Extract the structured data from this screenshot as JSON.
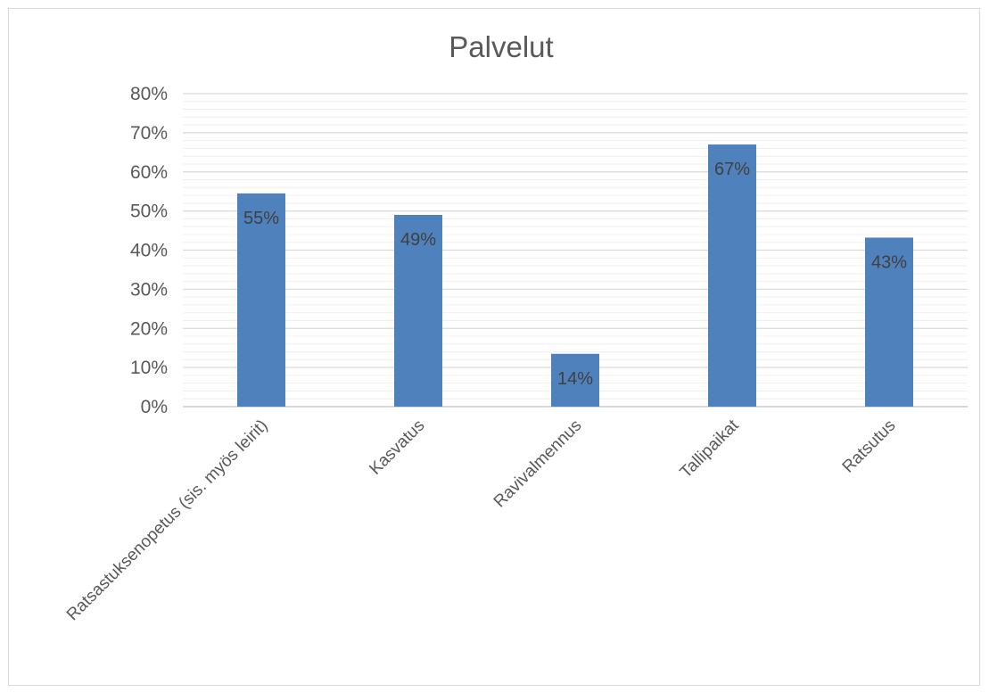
{
  "chart_data": {
    "type": "bar",
    "title": "Palvelut",
    "xlabel": "",
    "ylabel": "",
    "categories": [
      "Ratsastuksenopetus (sis. myös leirit)",
      "Kasvatus",
      "Ravivalmennus",
      "Tallipaikat",
      "Ratsutus"
    ],
    "values": [
      0.545,
      0.49,
      0.135,
      0.67,
      0.432
    ],
    "data_labels": [
      "55%",
      "49%",
      "14%",
      "67%",
      "43%"
    ],
    "ylim": [
      0,
      0.8
    ],
    "y_ticks": [
      "0%",
      "10%",
      "20%",
      "30%",
      "40%",
      "50%",
      "60%",
      "70%",
      "80%"
    ],
    "grid": true,
    "minor_grid": true,
    "legend": "none",
    "bar_color": "#4f81bd"
  }
}
